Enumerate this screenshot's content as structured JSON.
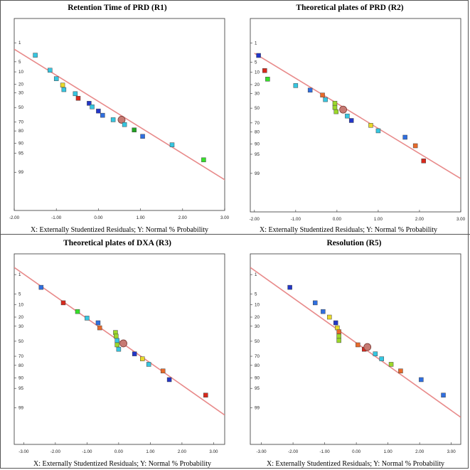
{
  "chart_data": [
    {
      "type": "scatter",
      "title": "Retention Time of PRD (R1)",
      "xlabel": "X: Externally Studentized Residuals; Y: Normal % Probability",
      "ylabel": "",
      "xlim": [
        -2.0,
        3.0
      ],
      "x_ticks": [
        -2.0,
        -1.0,
        0.0,
        1.0,
        2.0,
        3.0
      ],
      "x_tick_labels": [
        "-2.00",
        "-1.00",
        "0.00",
        "1.00",
        "2.00",
        "3.00"
      ],
      "y_ticks": [
        1,
        5,
        10,
        20,
        30,
        50,
        70,
        80,
        90,
        95,
        99
      ],
      "y_tick_labels": [
        "1",
        "5",
        "10",
        "20",
        "30",
        "50",
        "70",
        "80",
        "90",
        "95",
        "99"
      ],
      "y_scale": "normal-probability",
      "line": {
        "x": [
          -2.0,
          3.3
        ],
        "y": [
          1.8,
          99.8
        ],
        "color": "#e88a8a"
      },
      "points": [
        {
          "x": -1.5,
          "y": 3,
          "color": "#36c6e0"
        },
        {
          "x": -1.15,
          "y": 9,
          "color": "#36c6e0"
        },
        {
          "x": -1.0,
          "y": 15,
          "color": "#36c6e0"
        },
        {
          "x": -0.85,
          "y": 21,
          "color": "#e8d82a"
        },
        {
          "x": -0.82,
          "y": 26,
          "color": "#36c6e0"
        },
        {
          "x": -0.55,
          "y": 31,
          "color": "#36c6e0"
        },
        {
          "x": -0.48,
          "y": 37,
          "color": "#d8291c"
        },
        {
          "x": -0.22,
          "y": 44,
          "color": "#2236c8"
        },
        {
          "x": -0.15,
          "y": 49,
          "color": "#36c6e0"
        },
        {
          "x": 0.0,
          "y": 55,
          "color": "#2236c8"
        },
        {
          "x": 0.1,
          "y": 61,
          "color": "#2f6fe0"
        },
        {
          "x": 0.35,
          "y": 67,
          "color": "#36c6e0"
        },
        {
          "x": 0.55,
          "y": 67,
          "color": "#c77a73",
          "marker": "circle"
        },
        {
          "x": 0.62,
          "y": 73,
          "color": "#36c6e0"
        },
        {
          "x": 0.85,
          "y": 79,
          "color": "#22a322"
        },
        {
          "x": 1.05,
          "y": 85,
          "color": "#2f6fe0"
        },
        {
          "x": 1.75,
          "y": 91,
          "color": "#36c6e0"
        },
        {
          "x": 2.5,
          "y": 97,
          "color": "#36e02a"
        }
      ]
    },
    {
      "type": "scatter",
      "title": "Theoretical plates of PRD (R2)",
      "xlabel": "X: Externally Studentized Residuals; Y: Normal % Probability",
      "ylabel": "",
      "xlim": [
        -2.0,
        3.0
      ],
      "x_ticks": [
        -2.0,
        -1.0,
        0.0,
        1.0,
        2.0,
        3.0
      ],
      "x_tick_labels": [
        "-2.00",
        "-1.00",
        "0.00",
        "1.00",
        "2.00",
        "3.00"
      ],
      "y_ticks": [
        1,
        5,
        10,
        20,
        30,
        50,
        70,
        80,
        90,
        95,
        99
      ],
      "y_tick_labels": [
        "1",
        "5",
        "10",
        "20",
        "30",
        "50",
        "70",
        "80",
        "90",
        "95",
        "99"
      ],
      "y_scale": "normal-probability",
      "line": {
        "x": [
          -2.0,
          3.0
        ],
        "y": [
          2.5,
          99.4
        ],
        "color": "#e88a8a"
      },
      "points": [
        {
          "x": -1.9,
          "y": 3,
          "color": "#2236c8"
        },
        {
          "x": -1.75,
          "y": 9,
          "color": "#d8291c"
        },
        {
          "x": -1.68,
          "y": 15,
          "color": "#36e02a"
        },
        {
          "x": -1.0,
          "y": 21,
          "color": "#36c6e0"
        },
        {
          "x": -0.65,
          "y": 26,
          "color": "#2f6fe0"
        },
        {
          "x": -0.35,
          "y": 32,
          "color": "#e86a2a"
        },
        {
          "x": -0.28,
          "y": 38,
          "color": "#36c6e0"
        },
        {
          "x": -0.05,
          "y": 43,
          "color": "#9cd82a"
        },
        {
          "x": -0.05,
          "y": 49,
          "color": "#9cd82a"
        },
        {
          "x": -0.02,
          "y": 55,
          "color": "#9cd82a"
        },
        {
          "x": 0.15,
          "y": 52,
          "color": "#c77a73",
          "marker": "circle"
        },
        {
          "x": 0.25,
          "y": 61,
          "color": "#36c6e0"
        },
        {
          "x": 0.35,
          "y": 67,
          "color": "#2236c8"
        },
        {
          "x": 0.82,
          "y": 73,
          "color": "#e8d82a"
        },
        {
          "x": 1.0,
          "y": 79,
          "color": "#36c6e0"
        },
        {
          "x": 1.65,
          "y": 85,
          "color": "#2f6fe0"
        },
        {
          "x": 1.9,
          "y": 91,
          "color": "#e86a2a"
        },
        {
          "x": 2.1,
          "y": 97,
          "color": "#d8291c"
        }
      ]
    },
    {
      "type": "scatter",
      "title": "Theoretical plates of DXA (R3)",
      "xlabel": "X: Externally Studentized Residuals; Y: Normal % Probability",
      "ylabel": "",
      "xlim": [
        -3.0,
        3.0
      ],
      "x_ticks": [
        -3.0,
        -2.0,
        -1.0,
        0.0,
        1.0,
        2.0,
        3.0
      ],
      "x_tick_labels": [
        "-3.00",
        "-2.00",
        "-1.00",
        "0.00",
        "1.00",
        "2.00",
        "3.00"
      ],
      "y_ticks": [
        1,
        5,
        10,
        20,
        30,
        50,
        70,
        80,
        90,
        95,
        99
      ],
      "y_tick_labels": [
        "1",
        "5",
        "10",
        "20",
        "30",
        "50",
        "70",
        "80",
        "90",
        "95",
        "99"
      ],
      "y_scale": "normal-probability",
      "line": {
        "x": [
          -3.3,
          3.35
        ],
        "y": [
          0.5,
          99.5
        ],
        "color": "#e88a8a"
      },
      "points": [
        {
          "x": -2.45,
          "y": 3,
          "color": "#2f6fe0"
        },
        {
          "x": -1.75,
          "y": 9,
          "color": "#d8291c"
        },
        {
          "x": -1.3,
          "y": 15,
          "color": "#36e02a"
        },
        {
          "x": -1.0,
          "y": 21,
          "color": "#36c6e0"
        },
        {
          "x": -0.65,
          "y": 26,
          "color": "#2f6fe0"
        },
        {
          "x": -0.6,
          "y": 32,
          "color": "#e86a2a"
        },
        {
          "x": -0.1,
          "y": 38,
          "color": "#9cd82a"
        },
        {
          "x": -0.08,
          "y": 43,
          "color": "#9cd82a"
        },
        {
          "x": -0.05,
          "y": 49,
          "color": "#36c6e0"
        },
        {
          "x": -0.05,
          "y": 55,
          "color": "#9cd82a"
        },
        {
          "x": 0.15,
          "y": 53,
          "color": "#c77a73",
          "marker": "circle"
        },
        {
          "x": 0.0,
          "y": 61,
          "color": "#36c6e0"
        },
        {
          "x": 0.5,
          "y": 67,
          "color": "#2236c8"
        },
        {
          "x": 0.75,
          "y": 73,
          "color": "#e8d82a"
        },
        {
          "x": 0.95,
          "y": 79,
          "color": "#36c6e0"
        },
        {
          "x": 1.4,
          "y": 85,
          "color": "#e86a2a"
        },
        {
          "x": 1.6,
          "y": 91,
          "color": "#2236c8"
        },
        {
          "x": 2.75,
          "y": 97,
          "color": "#d8291c"
        }
      ]
    },
    {
      "type": "scatter",
      "title": "Resolution (R5)",
      "xlabel": "X: Externally Studentized Residuals; Y: Normal % Probability",
      "ylabel": "",
      "xlim": [
        -3.0,
        3.0
      ],
      "x_ticks": [
        -3.0,
        -2.0,
        -1.0,
        0.0,
        1.0,
        2.0,
        3.0
      ],
      "x_tick_labels": [
        "-3.00",
        "-2.00",
        "-1.00",
        "0.00",
        "1.00",
        "2.00",
        "3.00"
      ],
      "y_ticks": [
        1,
        5,
        10,
        20,
        30,
        50,
        70,
        80,
        90,
        95,
        99
      ],
      "y_tick_labels": [
        "1",
        "5",
        "10",
        "20",
        "30",
        "50",
        "70",
        "80",
        "90",
        "95",
        "99"
      ],
      "y_scale": "normal-probability",
      "line": {
        "x": [
          -3.35,
          3.3
        ],
        "y": [
          0.5,
          99.6
        ],
        "color": "#e88a8a"
      },
      "points": [
        {
          "x": -2.1,
          "y": 3,
          "color": "#2236c8"
        },
        {
          "x": -1.3,
          "y": 9,
          "color": "#2f6fe0"
        },
        {
          "x": -1.05,
          "y": 15,
          "color": "#2f6fe0"
        },
        {
          "x": -0.85,
          "y": 20,
          "color": "#e8d82a"
        },
        {
          "x": -0.65,
          "y": 26,
          "color": "#2236c8"
        },
        {
          "x": -0.6,
          "y": 32,
          "color": "#e8d82a"
        },
        {
          "x": -0.55,
          "y": 37,
          "color": "#e86a2a"
        },
        {
          "x": -0.55,
          "y": 43,
          "color": "#9cd82a"
        },
        {
          "x": -0.55,
          "y": 49,
          "color": "#9cd82a"
        },
        {
          "x": 0.05,
          "y": 55,
          "color": "#e86a2a"
        },
        {
          "x": 0.25,
          "y": 61,
          "color": "#d8291c"
        },
        {
          "x": 0.35,
          "y": 58,
          "color": "#c77a73",
          "marker": "circle"
        },
        {
          "x": 0.6,
          "y": 67,
          "color": "#36c6e0"
        },
        {
          "x": 0.8,
          "y": 73,
          "color": "#36c6e0"
        },
        {
          "x": 1.1,
          "y": 79,
          "color": "#9cd82a"
        },
        {
          "x": 1.4,
          "y": 85,
          "color": "#e86a2a"
        },
        {
          "x": 2.05,
          "y": 91,
          "color": "#2f6fe0"
        },
        {
          "x": 2.75,
          "y": 97,
          "color": "#2f6fe0"
        }
      ]
    }
  ]
}
